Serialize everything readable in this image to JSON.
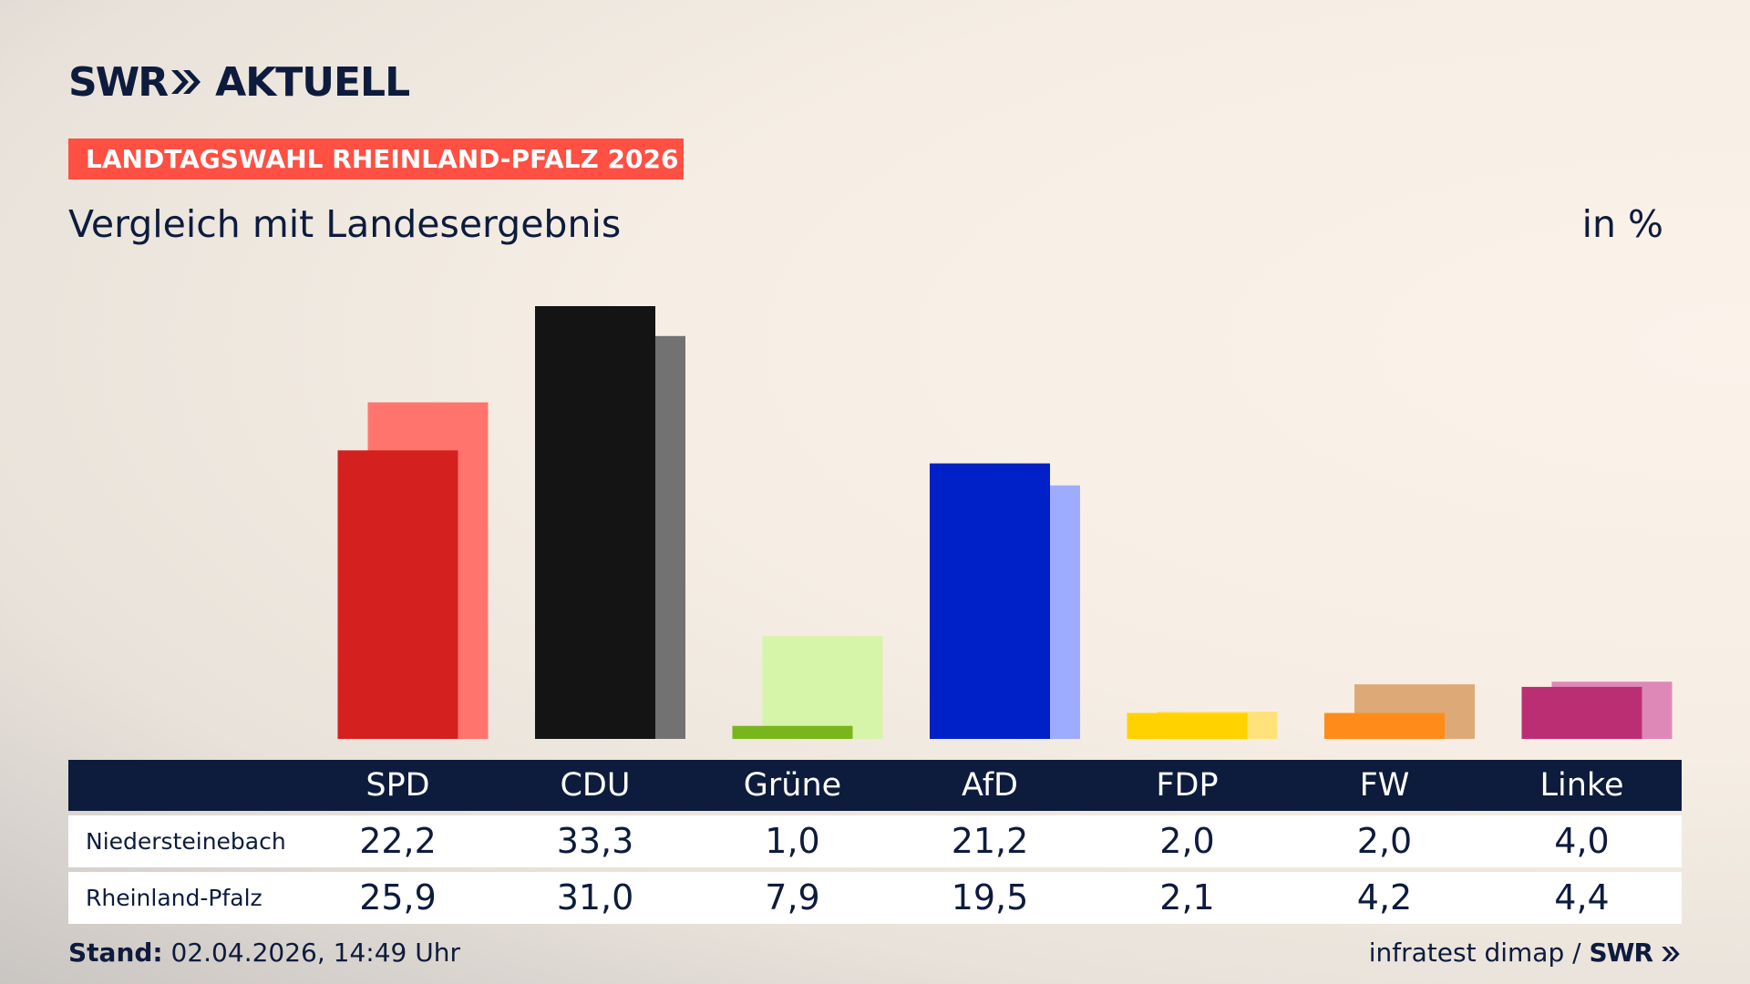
{
  "header": {
    "logo_swr": "SWR",
    "logo_aktuell": "AKTUELL",
    "badge": "LANDTAGSWAHL RHEINLAND-PFALZ 2026",
    "subtitle": "Vergleich mit Landesergebnis",
    "unit": "in %"
  },
  "colors": {
    "badge": "#ff5043",
    "navy": "#0d1b3d"
  },
  "chart_data": {
    "type": "bar",
    "categories": [
      "SPD",
      "CDU",
      "Grüne",
      "AfD",
      "FDP",
      "FW",
      "Linke"
    ],
    "series": [
      {
        "name": "Niedersteinebach",
        "values": [
          22.2,
          33.3,
          1.0,
          21.2,
          2.0,
          2.0,
          4.0
        ],
        "colors": [
          "#d52020",
          "#141414",
          "#79b61c",
          "#0020c8",
          "#ffd200",
          "#ff8c1a",
          "#bc2e74"
        ]
      },
      {
        "name": "Rheinland-Pfalz",
        "values": [
          25.9,
          31.0,
          7.9,
          19.5,
          2.1,
          4.2,
          4.4
        ],
        "colors": [
          "#ff756e",
          "#727272",
          "#d6f5a8",
          "#9eacff",
          "#ffe27a",
          "#ddaa77",
          "#de88b8"
        ]
      }
    ],
    "ylim": [
      0,
      33.3
    ],
    "legend": "none",
    "grid": false
  },
  "table": {
    "rows": [
      {
        "label": "Niedersteinebach",
        "values": [
          "22,2",
          "33,3",
          "1,0",
          "21,2",
          "2,0",
          "2,0",
          "4,0"
        ]
      },
      {
        "label": "Rheinland-Pfalz",
        "values": [
          "25,9",
          "31,0",
          "7,9",
          "19,5",
          "2,1",
          "4,2",
          "4,4"
        ]
      }
    ]
  },
  "footer": {
    "stand_label": "Stand:",
    "stand_value": "02.04.2026, 14:49 Uhr",
    "source": "infratest dimap /",
    "source_logo": "SWR"
  }
}
